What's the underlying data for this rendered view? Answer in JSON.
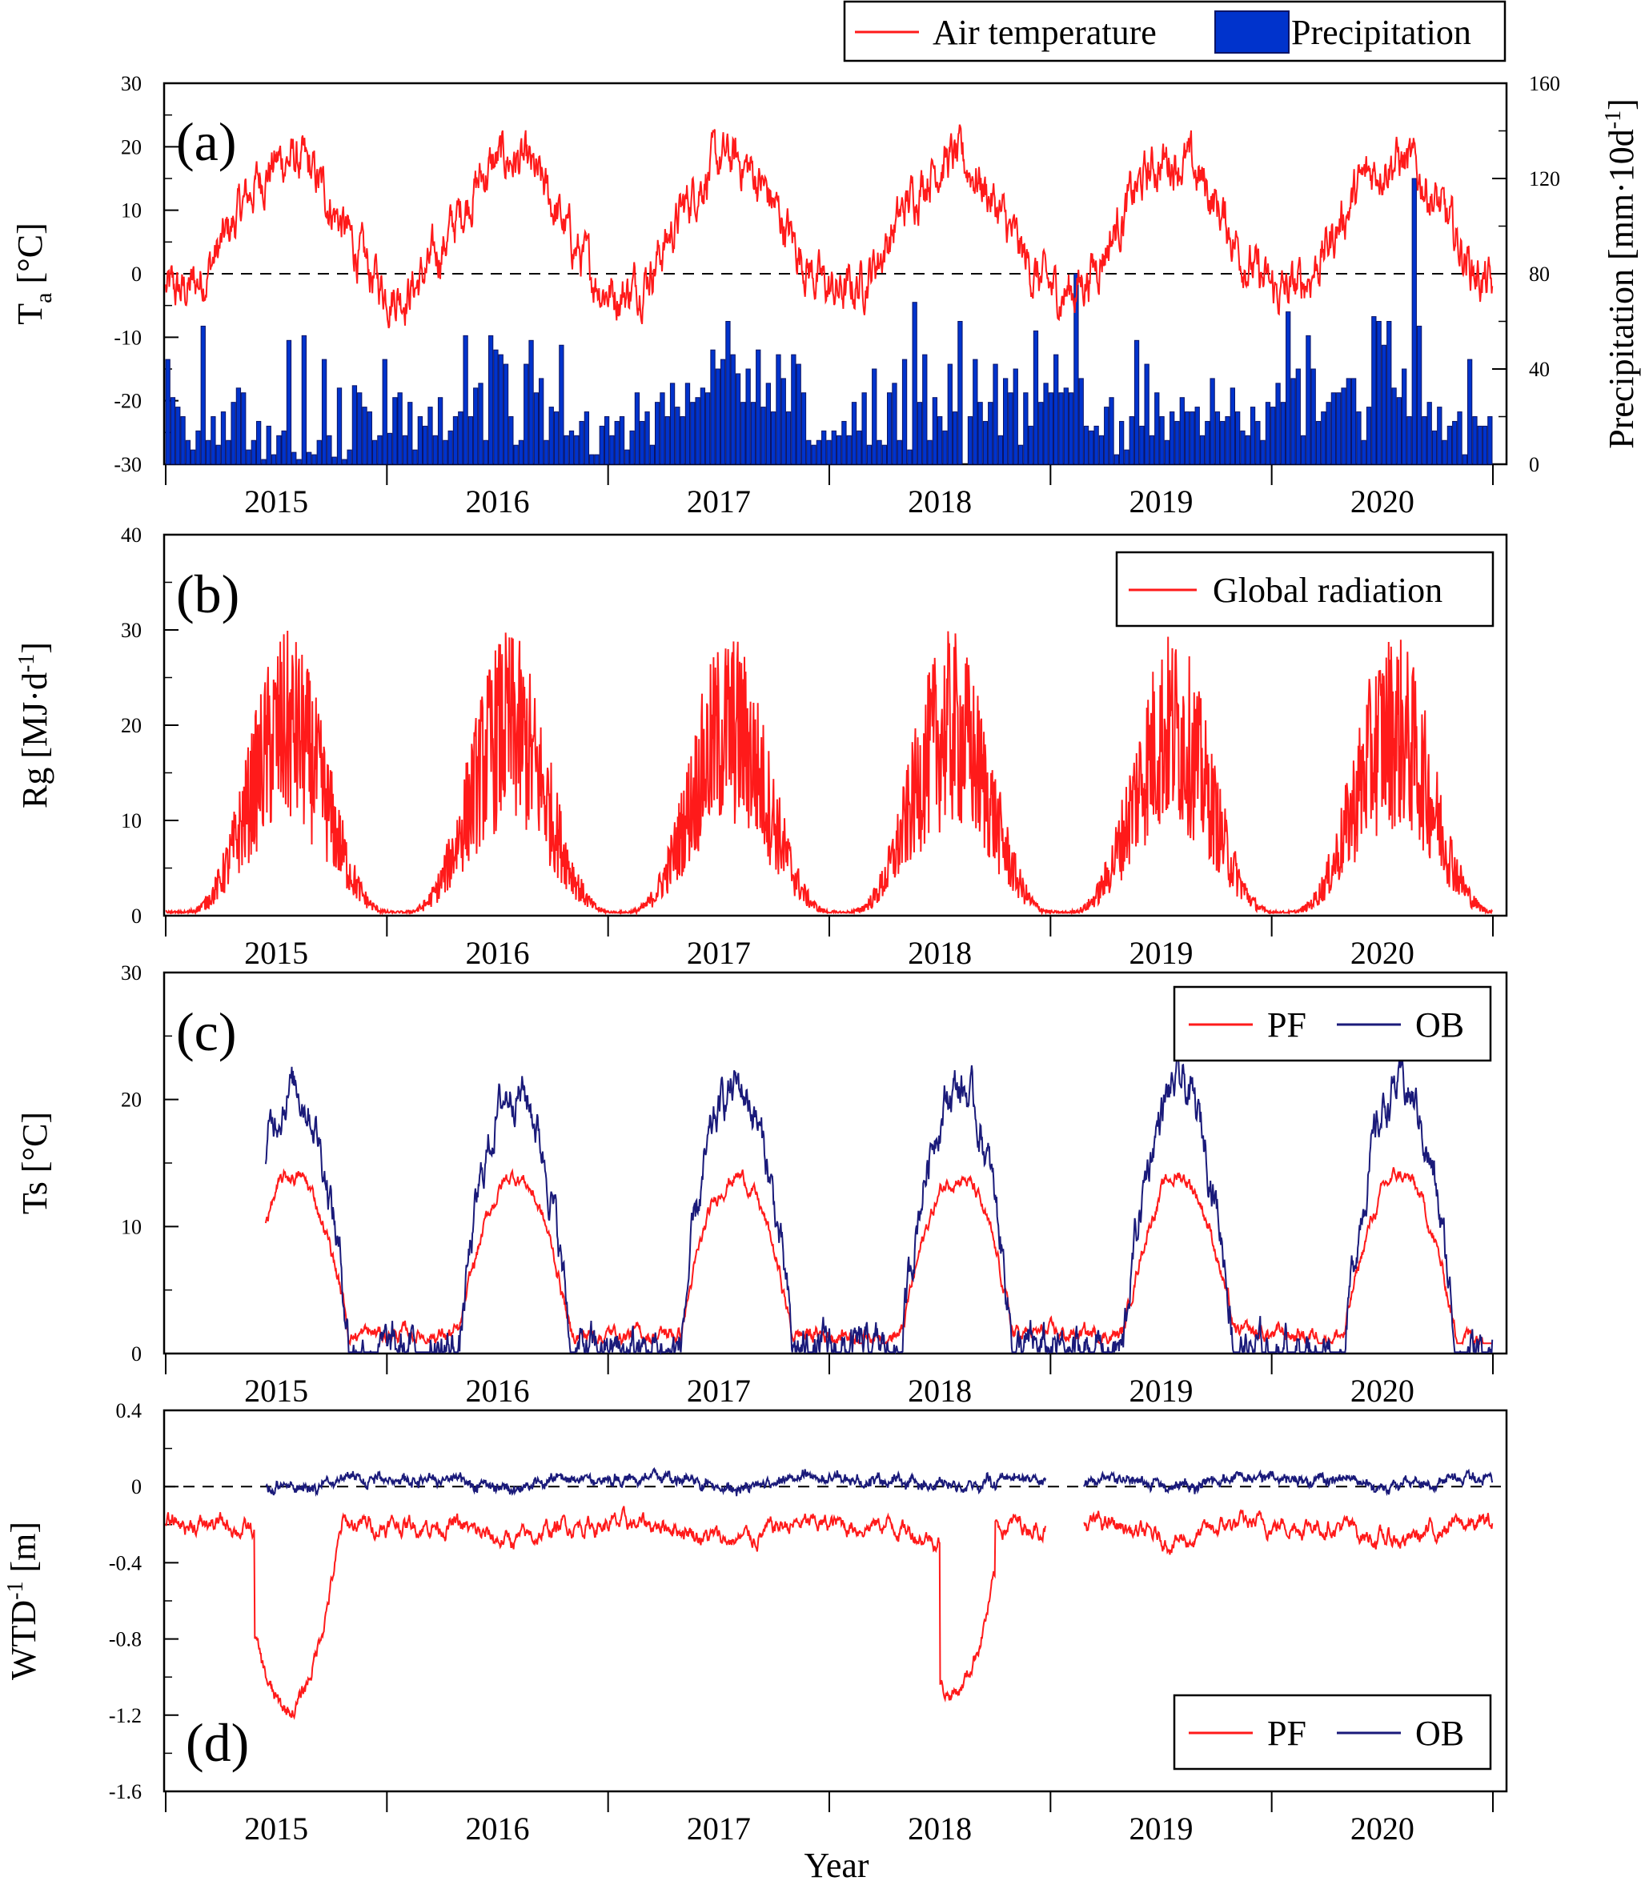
{
  "xlabel": "Year",
  "years": [
    "2015",
    "2016",
    "2017",
    "2018",
    "2019",
    "2020"
  ],
  "colors": {
    "red": "#ff1a1a",
    "blue": "#1a1a7a",
    "bar_fill": "#0033cc",
    "bar_edge": "#0a1466"
  },
  "chart_data": [
    {
      "type": "line+bar",
      "panel_label": "(a)",
      "ylabel": "Ta [°C]",
      "ylabel_main": "T",
      "ylabel_sub": "a",
      "ylabel_unit": " [°C]",
      "ylim": [
        -30,
        30
      ],
      "yticks": [
        -30,
        -20,
        -10,
        0,
        10,
        20,
        30
      ],
      "ylabel_right": "Precipitation [mm·10d⁻¹]",
      "ylabel_right_main": "Precipitation [mm·10d",
      "ylabel_right_sup": "-1",
      "ylabel_right_end": "]",
      "ylim_right": [
        0,
        160
      ],
      "yticks_right": [
        0,
        40,
        80,
        120,
        160
      ],
      "zero_line": 0,
      "legend": [
        "Air temperature",
        "Precipitation"
      ],
      "legend_placement": "top-right (outside)",
      "series": [
        {
          "name": "Air temperature",
          "kind": "line",
          "annual_mean": 7.5,
          "amplitude": 10.5
        },
        {
          "name": "Precipitation",
          "kind": "bar",
          "bin": "10 days",
          "values": [
            44,
            28,
            24,
            20,
            10,
            6,
            14,
            58,
            10,
            20,
            8,
            22,
            10,
            26,
            32,
            30,
            6,
            10,
            18,
            2,
            16,
            4,
            12,
            14,
            52,
            5,
            2,
            54,
            5,
            4,
            10,
            44,
            12,
            3,
            32,
            2,
            6,
            33,
            30,
            24,
            22,
            10,
            12,
            44,
            13,
            28,
            30,
            12,
            26,
            6,
            20,
            16,
            24,
            12,
            28,
            10,
            14,
            20,
            22,
            54,
            20,
            32,
            34,
            10,
            54,
            48,
            46,
            42,
            20,
            8,
            10,
            42,
            52,
            30,
            36,
            10,
            24,
            22,
            50,
            12,
            14,
            12,
            18,
            22,
            4,
            4,
            16,
            20,
            12,
            18,
            20,
            6,
            14,
            30,
            18,
            22,
            8,
            26,
            30,
            20,
            34,
            24,
            20,
            34,
            26,
            28,
            32,
            30,
            48,
            40,
            44,
            60,
            46,
            38,
            26,
            40,
            26,
            48,
            24,
            34,
            22,
            46,
            36,
            22,
            46,
            42,
            30,
            10,
            8,
            10,
            14,
            10,
            14,
            12,
            18,
            12,
            26,
            14,
            30,
            8,
            40,
            10,
            8,
            30,
            34,
            10,
            44,
            6,
            68,
            26,
            46,
            10,
            28,
            20,
            14,
            42,
            22,
            60,
            0,
            20,
            44,
            26,
            18,
            26,
            42,
            12,
            36,
            30,
            40,
            8,
            30,
            16,
            56,
            26,
            34,
            30,
            46,
            30,
            32,
            30,
            80,
            36,
            16,
            14,
            16,
            12,
            24,
            28,
            4,
            18,
            6,
            20,
            52,
            16,
            42,
            12,
            30,
            20,
            10,
            22,
            18,
            28,
            22,
            22,
            24,
            12,
            18,
            36,
            22,
            18,
            20,
            32,
            22,
            14,
            12,
            24,
            18,
            10,
            26,
            24,
            34,
            26,
            64,
            36,
            40,
            12,
            54,
            40,
            18,
            22,
            26,
            30,
            30,
            32,
            36,
            36,
            22,
            10,
            24,
            62,
            60,
            50,
            60,
            32,
            28,
            40,
            20,
            120,
            58,
            20,
            26,
            14,
            24,
            10,
            16,
            18,
            22,
            4,
            44,
            20,
            16,
            16,
            20
          ]
        }
      ]
    },
    {
      "type": "line",
      "panel_label": "(b)",
      "ylabel": "Rg [MJ·d⁻¹]",
      "ylabel_main": "Rg [MJ·d",
      "ylabel_sup": "-1",
      "ylabel_end": "]",
      "ylim": [
        0,
        40
      ],
      "yticks": [
        0,
        10,
        20,
        30,
        40
      ],
      "legend": [
        "Global radiation"
      ],
      "legend_placement": "top-right",
      "series": [
        {
          "name": "Global radiation",
          "summer_peak": 30,
          "winter_min": 0.5
        }
      ]
    },
    {
      "type": "line",
      "panel_label": "(c)",
      "ylabel": "Ts [°C]",
      "ylim": [
        0,
        30
      ],
      "yticks": [
        0,
        10,
        20,
        30
      ],
      "legend": [
        "PF",
        "OB"
      ],
      "legend_placement": "top-right",
      "series": [
        {
          "name": "PF",
          "winter_min": 1.5,
          "summer_peak": 14
        },
        {
          "name": "OB",
          "winter_min": 0.2,
          "summer_peak": 21
        }
      ]
    },
    {
      "type": "line",
      "panel_label": "(d)",
      "ylabel": "WTD⁻¹ [m]",
      "ylabel_main": "WTD",
      "ylabel_sup": "-1",
      "ylabel_end": " [m]",
      "ylim": [
        -1.6,
        0.4
      ],
      "yticks": [
        -1.6,
        -1.2,
        -0.8,
        -0.4,
        0,
        0.4
      ],
      "zero_line": 0,
      "legend": [
        "PF",
        "OB"
      ],
      "legend_placement": "bottom-right",
      "series": [
        {
          "name": "PF",
          "typical": -0.2,
          "min": -1.23
        },
        {
          "name": "OB",
          "typical": 0.05,
          "max": 0.18
        }
      ]
    }
  ]
}
